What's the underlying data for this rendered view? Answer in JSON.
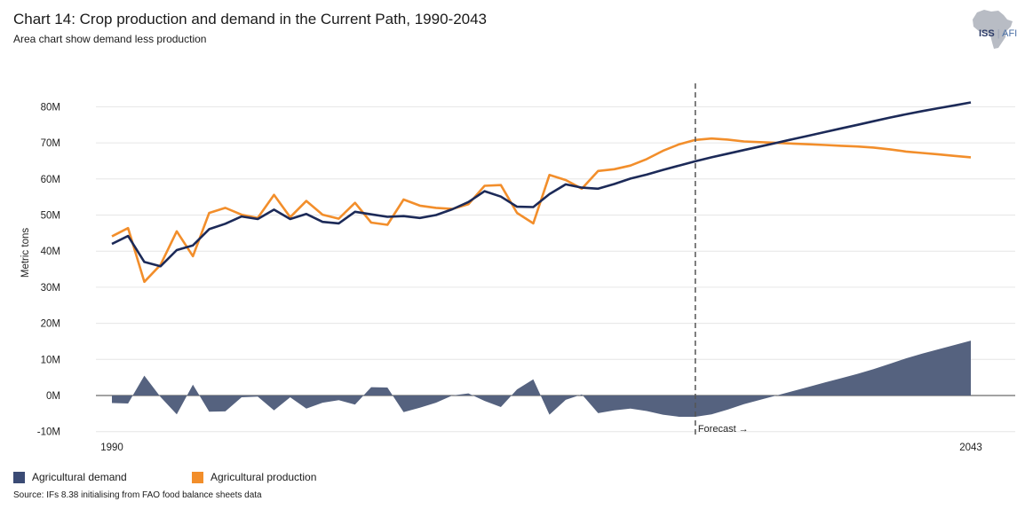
{
  "title": "Chart 14: Crop production and demand in the Current Path, 1990-2043",
  "subtitle": "Area chart show demand less production",
  "logo": {
    "brand": "ISS",
    "unit": "AFI"
  },
  "source": "Source: IFs 8.38 initialising from FAO food balance sheets data",
  "colors": {
    "demand": "#1c2a58",
    "production": "#f28e2b",
    "area": "#55627f",
    "gridline": "#e6e6e6",
    "forecast_line": "#555555"
  },
  "chart_data": {
    "type": "line",
    "title": "Crop production and demand in the Current Path, 1990-2043",
    "ylabel": "Metric tons",
    "xlabel": "",
    "ylim": [
      -10,
      80
    ],
    "yticks": [
      -10,
      0,
      10,
      20,
      30,
      40,
      50,
      60,
      70,
      80
    ],
    "ytick_labels": [
      "-10M",
      "0M",
      "10M",
      "20M",
      "30M",
      "40M",
      "50M",
      "60M",
      "70M",
      "80M"
    ],
    "x_tick_labels": [
      "1990",
      "2043"
    ],
    "forecast_start": 2026,
    "forecast_label": "Forecast →",
    "x": [
      1990,
      1991,
      1992,
      1993,
      1994,
      1995,
      1996,
      1997,
      1998,
      1999,
      2000,
      2001,
      2002,
      2003,
      2004,
      2005,
      2006,
      2007,
      2008,
      2009,
      2010,
      2011,
      2012,
      2013,
      2014,
      2015,
      2016,
      2017,
      2018,
      2019,
      2020,
      2021,
      2022,
      2023,
      2024,
      2025,
      2026,
      2027,
      2028,
      2029,
      2030,
      2031,
      2032,
      2033,
      2034,
      2035,
      2036,
      2037,
      2038,
      2039,
      2040,
      2041,
      2042,
      2043
    ],
    "series": [
      {
        "name": "Agricultural demand",
        "style": "line",
        "values": [
          42,
          44.2,
          37,
          35.8,
          40.3,
          41.6,
          46.1,
          47.6,
          49.6,
          48.9,
          51.5,
          48.9,
          50.3,
          48.1,
          47.7,
          50.9,
          50.2,
          49.5,
          49.7,
          49.2,
          50,
          51.6,
          53.6,
          56.6,
          55.1,
          52.3,
          52.2,
          55.8,
          58.5,
          57.6,
          57.3,
          58.6,
          60.1,
          61.2,
          62.5,
          63.7,
          64.9,
          66,
          67,
          68,
          69,
          70,
          71,
          72,
          73,
          74,
          75,
          76,
          77,
          77.9,
          78.8,
          79.6,
          80.4,
          81.2
        ]
      },
      {
        "name": "Agricultural production",
        "style": "line",
        "values": [
          44.1,
          46.4,
          31.5,
          36.2,
          45.5,
          38.6,
          50.6,
          52,
          50.1,
          49.2,
          55.6,
          49.4,
          53.9,
          50.1,
          49,
          53.4,
          47.9,
          47.3,
          54.3,
          52.6,
          52,
          51.7,
          53,
          58.1,
          58.3,
          50.6,
          47.7,
          61.1,
          59.7,
          57.3,
          62.2,
          62.7,
          63.7,
          65.5,
          67.8,
          69.6,
          70.8,
          71.2,
          70.9,
          70.4,
          70.2,
          70,
          69.8,
          69.6,
          69.4,
          69.2,
          69,
          68.7,
          68.2,
          67.6,
          67.2,
          66.8,
          66.4,
          66
        ]
      },
      {
        "name": "Demand less production",
        "style": "area",
        "values": [
          -2.1,
          -2.2,
          5.5,
          -0.4,
          -5.2,
          3,
          -4.5,
          -4.4,
          -0.5,
          -0.3,
          -4.1,
          -0.5,
          -3.6,
          -2,
          -1.3,
          -2.5,
          2.3,
          2.2,
          -4.6,
          -3.4,
          -2,
          0,
          0.6,
          -1.5,
          -3.2,
          1.7,
          4.5,
          -5.3,
          -1.2,
          0.3,
          -4.9,
          -4.1,
          -3.6,
          -4.3,
          -5.3,
          -5.9,
          -5.9,
          -5.2,
          -3.9,
          -2.4,
          -1.2,
          0,
          1.2,
          2.4,
          3.6,
          4.8,
          6,
          7.3,
          8.8,
          10.3,
          11.6,
          12.8,
          14,
          15.2
        ]
      }
    ],
    "legend": [
      {
        "label": "Agricultural demand",
        "color": "#3b4b75"
      },
      {
        "label": "Agricultural production",
        "color": "#f28e2b"
      }
    ]
  }
}
